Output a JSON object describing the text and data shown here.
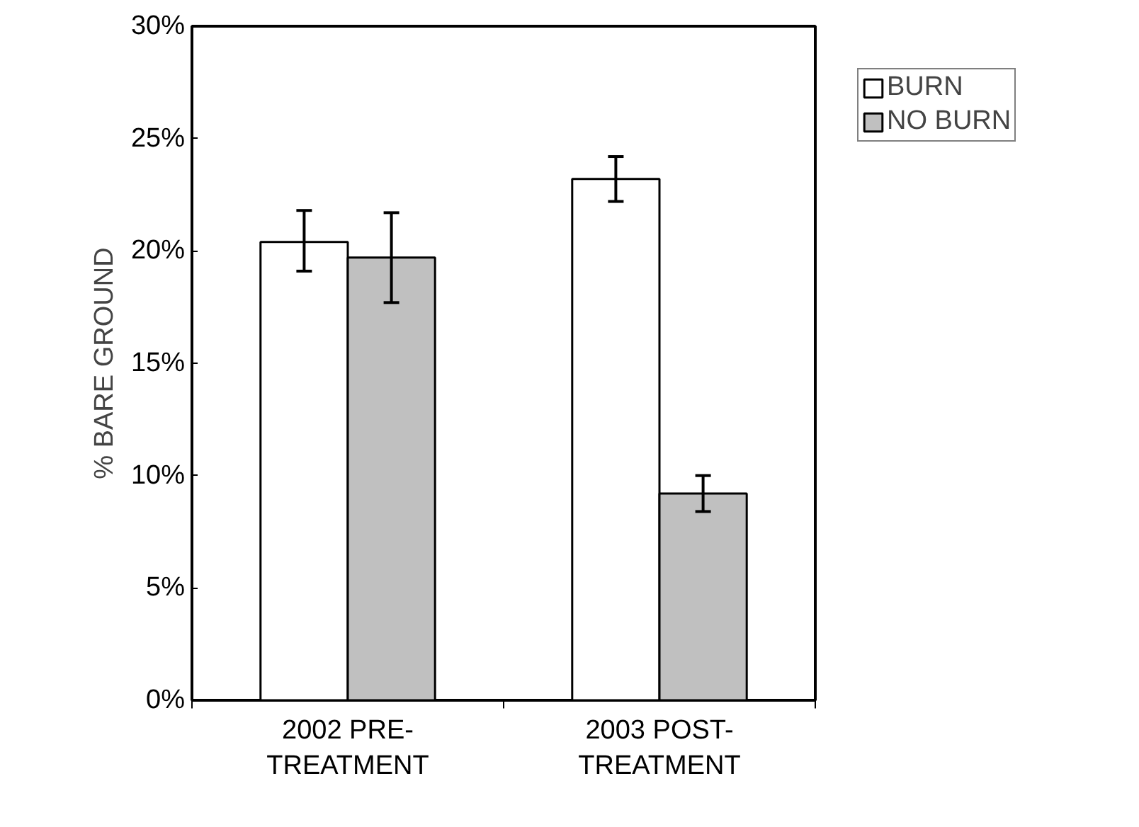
{
  "chart_data": {
    "type": "bar",
    "ylabel": "% BARE GROUND",
    "categories": [
      "2002 PRE-\nTREATMENT",
      "2003 POST-\nTREATMENT"
    ],
    "series": [
      {
        "name": "BURN",
        "color": "#ffffff",
        "values": [
          20.4,
          23.2
        ],
        "errors": [
          [
            19.1,
            21.8
          ],
          [
            22.2,
            24.2
          ]
        ]
      },
      {
        "name": "NO BURN",
        "color": "#c0c0c0",
        "values": [
          19.7,
          9.2
        ],
        "errors": [
          [
            17.7,
            21.7
          ],
          [
            8.4,
            10.0
          ]
        ]
      }
    ],
    "ylim": [
      0,
      30
    ],
    "yticks": [
      {
        "value": 0,
        "label": "0%"
      },
      {
        "value": 5,
        "label": "5%"
      },
      {
        "value": 10,
        "label": "10%"
      },
      {
        "value": 15,
        "label": "15%"
      },
      {
        "value": 20,
        "label": "20%"
      },
      {
        "value": 25,
        "label": "25%"
      },
      {
        "value": 30,
        "label": "30%"
      }
    ],
    "grid": false,
    "legend": "top right"
  }
}
